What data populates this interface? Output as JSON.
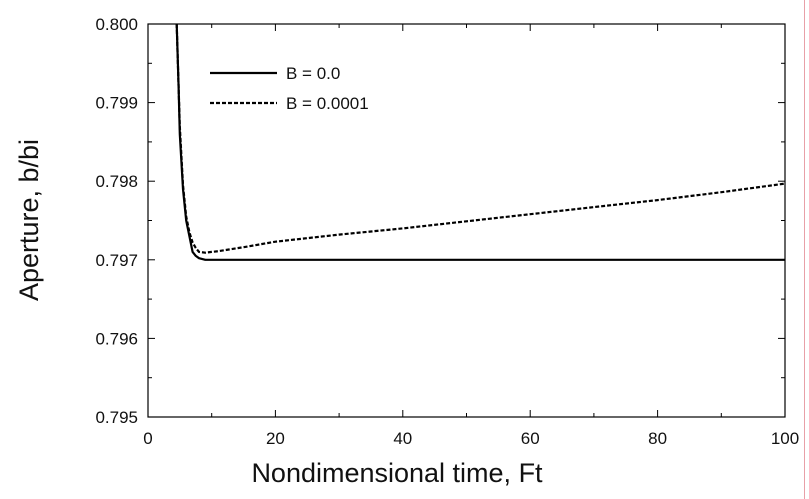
{
  "chart_data": {
    "type": "line",
    "xlabel": "Nondimensional time, Ft",
    "ylabel": "Aperture, b/bi",
    "xlim": [
      0,
      100
    ],
    "ylim": [
      0.795,
      0.8
    ],
    "xticks": [
      0,
      20,
      40,
      60,
      80,
      100
    ],
    "xtick_labels": [
      "0",
      "20",
      "40",
      "60",
      "80",
      "100"
    ],
    "yticks": [
      0.795,
      0.796,
      0.797,
      0.798,
      0.799,
      0.8
    ],
    "ytick_labels": [
      "0.795",
      "0.796",
      "0.797",
      "0.798",
      "0.799",
      "0.800"
    ],
    "grid": false,
    "legend_position": "top-left",
    "series": [
      {
        "name": "B = 0.0",
        "style": "solid",
        "color": "#000000",
        "x": [
          4.5,
          4.8,
          5,
          5.5,
          6,
          6.5,
          7,
          7.5,
          8,
          9,
          10,
          11,
          15,
          20,
          40,
          60,
          80,
          100
        ],
        "y": [
          0.8,
          0.7992,
          0.7986,
          0.7979,
          0.7975,
          0.7973,
          0.7971,
          0.79705,
          0.79702,
          0.797,
          0.797,
          0.797,
          0.797,
          0.797,
          0.797,
          0.797,
          0.797,
          0.797
        ]
      },
      {
        "name": "B = 0.0001",
        "style": "dashed",
        "color": "#000000",
        "x": [
          4.5,
          4.8,
          5,
          5.5,
          6,
          6.5,
          7,
          7.5,
          8,
          9,
          10,
          11,
          15,
          20,
          30,
          40,
          50,
          60,
          70,
          80,
          90,
          100
        ],
        "y": [
          0.8,
          0.7992,
          0.7987,
          0.79795,
          0.79755,
          0.79735,
          0.79722,
          0.79715,
          0.7971,
          0.79709,
          0.7971,
          0.79711,
          0.79716,
          0.79723,
          0.79732,
          0.7974,
          0.79749,
          0.79758,
          0.79767,
          0.79776,
          0.79786,
          0.79797
        ]
      }
    ],
    "accent_rule_color": "#e8a0a8"
  }
}
